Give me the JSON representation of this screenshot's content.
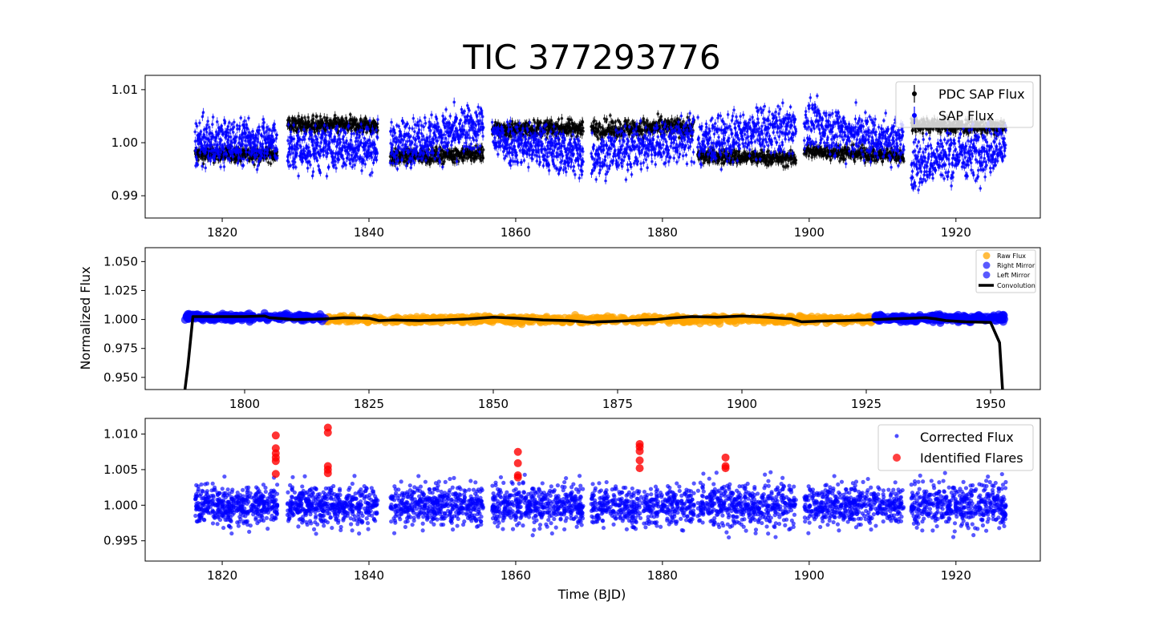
{
  "figure": {
    "title": "TIC 377293776"
  },
  "chart_data": [
    {
      "type": "scatter",
      "panel": "top",
      "xlabel": "",
      "ylabel": "",
      "xlim": [
        1809.5,
        1931.5
      ],
      "ylim": [
        0.9858,
        1.0127
      ],
      "xticks": [
        1820,
        1840,
        1860,
        1880,
        1900,
        1920
      ],
      "yticks": [
        0.99,
        1.0,
        1.01
      ],
      "ytick_labels": [
        "0.99",
        "1.00",
        "1.01"
      ],
      "legend_position": "top-right",
      "series": [
        {
          "name": "PDC SAP Flux",
          "color": "#000000",
          "marker": "errorbar-point",
          "segments": [
            {
              "x0": 1816.3,
              "x1": 1827.5,
              "level": [
                0.9978,
                0.9978
              ],
              "spread": 0.0016
            },
            {
              "x0": 1828.9,
              "x1": 1841.2,
              "level": [
                1.0034,
                1.0032
              ],
              "spread": 0.0018
            },
            {
              "x0": 1842.9,
              "x1": 1855.6,
              "level": [
                0.9973,
                0.998
              ],
              "spread": 0.0016
            },
            {
              "x0": 1856.8,
              "x1": 1869.2,
              "level": [
                1.0025,
                1.0028
              ],
              "spread": 0.0018
            },
            {
              "x0": 1870.3,
              "x1": 1884.3,
              "level": [
                1.0026,
                1.003
              ],
              "spread": 0.002
            },
            {
              "x0": 1884.8,
              "x1": 1898.2,
              "level": [
                0.9975,
                0.997
              ],
              "spread": 0.0016
            },
            {
              "x0": 1899.3,
              "x1": 1912.9,
              "level": [
                0.9985,
                0.9975
              ],
              "spread": 0.0016
            },
            {
              "x0": 1913.9,
              "x1": 1926.8,
              "level": [
                1.0035,
                1.0028
              ],
              "spread": 0.0016
            }
          ]
        },
        {
          "name": "SAP Flux",
          "color": "#0000ff",
          "marker": "errorbar-point",
          "segments": [
            {
              "x0": 1816.3,
              "x1": 1827.5,
              "level": [
                1.0,
                1.0003
              ],
              "spread": 0.005
            },
            {
              "x0": 1828.9,
              "x1": 1841.2,
              "level": [
                0.9985,
                0.9995
              ],
              "spread": 0.005
            },
            {
              "x0": 1842.9,
              "x1": 1855.6,
              "level": [
                0.9995,
                1.003
              ],
              "spread": 0.005
            },
            {
              "x0": 1856.8,
              "x1": 1869.2,
              "level": [
                1.001,
                0.9975
              ],
              "spread": 0.005
            },
            {
              "x0": 1870.3,
              "x1": 1884.3,
              "level": [
                0.9975,
                1.001
              ],
              "spread": 0.005
            },
            {
              "x0": 1884.8,
              "x1": 1898.2,
              "level": [
                1.0,
                1.003
              ],
              "spread": 0.0052
            },
            {
              "x0": 1899.3,
              "x1": 1912.9,
              "level": [
                1.0035,
                1.0
              ],
              "spread": 0.0052
            },
            {
              "x0": 1913.9,
              "x1": 1926.8,
              "level": [
                0.996,
                0.9995
              ],
              "spread": 0.0056
            }
          ]
        }
      ]
    },
    {
      "type": "scatter",
      "panel": "middle",
      "xlabel": "",
      "ylabel": "Normalized Flux",
      "xlim": [
        1780.0,
        1960.0
      ],
      "ylim": [
        0.9395,
        1.062
      ],
      "xticks": [
        1800,
        1825,
        1850,
        1875,
        1900,
        1925,
        1950
      ],
      "yticks": [
        0.95,
        0.975,
        1.0,
        1.025,
        1.05
      ],
      "ytick_labels": [
        "0.950",
        "0.975",
        "1.000",
        "1.025",
        "1.050"
      ],
      "legend_position": "top-right",
      "series": [
        {
          "name": "Raw Flux",
          "color": "#ffa500",
          "x_range": [
            1816.3,
            1926.8
          ],
          "level": 1.0,
          "spread": 0.0028
        },
        {
          "name": "Right Mirror",
          "color": "#0000ff",
          "x_range": [
            1926.8,
            1952.8
          ],
          "level": 1.001,
          "spread": 0.003
        },
        {
          "name": "Left Mirror",
          "color": "#0000ff",
          "x_range": [
            1788.0,
            1816.3
          ],
          "level": 1.002,
          "spread": 0.003
        },
        {
          "name": "Convolution",
          "color": "#000000",
          "line": {
            "x": [
              1788.0,
              1788.6,
              1789.6,
              1800,
              1804,
              1805,
              1810,
              1816,
              1820,
              1825,
              1827,
              1830,
              1835,
              1840,
              1845,
              1850,
              1855,
              1860,
              1865,
              1870,
              1871,
              1875,
              1880,
              1883,
              1885,
              1890,
              1895,
              1900,
              1905,
              1910,
              1912,
              1915,
              1920,
              1925,
              1930,
              1937,
              1939,
              1941,
              1945,
              1950,
              1951.8,
              1952.4
            ],
            "y": [
              0.9395,
              0.96,
              1.0025,
              1.0025,
              1.003,
              1.0015,
              1.0,
              1.0005,
              1.0015,
              1.001,
              0.999,
              0.9995,
              0.999,
              0.9995,
              1.0005,
              1.002,
              1.001,
              0.9995,
              0.999,
              0.9975,
              0.998,
              0.9985,
              0.9995,
              1.0,
              1.001,
              1.0025,
              1.002,
              1.003,
              1.002,
              1.0005,
              0.998,
              0.9985,
              0.999,
              0.9995,
              1.0005,
              1.0015,
              1.0005,
              0.999,
              0.998,
              0.9975,
              0.98,
              0.9395
            ]
          }
        }
      ]
    },
    {
      "type": "scatter",
      "panel": "bottom",
      "xlabel": "Time (BJD)",
      "ylabel": "",
      "xlim": [
        1809.5,
        1931.5
      ],
      "ylim": [
        0.99215,
        1.0122
      ],
      "xticks": [
        1820,
        1840,
        1860,
        1880,
        1900,
        1920
      ],
      "yticks": [
        0.995,
        1.0,
        1.005,
        1.01
      ],
      "ytick_labels": [
        "0.995",
        "1.000",
        "1.005",
        "1.010"
      ],
      "legend_position": "top-right",
      "series": [
        {
          "name": "Corrected Flux",
          "color": "#0000ff",
          "segments": [
            {
              "x0": 1816.3,
              "x1": 1827.5,
              "level": 1.0,
              "spread": 0.0032
            },
            {
              "x0": 1828.9,
              "x1": 1841.2,
              "level": 1.0,
              "spread": 0.0032
            },
            {
              "x0": 1842.9,
              "x1": 1855.6,
              "level": 1.0,
              "spread": 0.0032
            },
            {
              "x0": 1856.8,
              "x1": 1869.2,
              "level": 1.0,
              "spread": 0.0034
            },
            {
              "x0": 1870.3,
              "x1": 1884.3,
              "level": 1.0,
              "spread": 0.0034
            },
            {
              "x0": 1884.8,
              "x1": 1898.2,
              "level": 1.0,
              "spread": 0.0036
            },
            {
              "x0": 1899.3,
              "x1": 1912.9,
              "level": 1.0,
              "spread": 0.0032
            },
            {
              "x0": 1913.9,
              "x1": 1926.8,
              "level": 1.0,
              "spread": 0.0036
            }
          ]
        },
        {
          "name": "Identified Flares",
          "color": "#ff0000",
          "points": [
            {
              "x": 1827.3,
              "y": 1.0098
            },
            {
              "x": 1827.3,
              "y": 1.008
            },
            {
              "x": 1827.3,
              "y": 1.0073
            },
            {
              "x": 1827.3,
              "y": 1.0067
            },
            {
              "x": 1827.3,
              "y": 1.0062
            },
            {
              "x": 1827.3,
              "y": 1.0044
            },
            {
              "x": 1834.4,
              "y": 1.0109
            },
            {
              "x": 1834.4,
              "y": 1.0102
            },
            {
              "x": 1834.4,
              "y": 1.0055
            },
            {
              "x": 1834.4,
              "y": 1.005
            },
            {
              "x": 1834.4,
              "y": 1.0045
            },
            {
              "x": 1860.3,
              "y": 1.0075
            },
            {
              "x": 1860.3,
              "y": 1.0059
            },
            {
              "x": 1860.3,
              "y": 1.0042
            },
            {
              "x": 1860.3,
              "y": 1.0039
            },
            {
              "x": 1876.9,
              "y": 1.0086
            },
            {
              "x": 1876.9,
              "y": 1.0082
            },
            {
              "x": 1876.9,
              "y": 1.0076
            },
            {
              "x": 1876.9,
              "y": 1.0063
            },
            {
              "x": 1876.9,
              "y": 1.0052
            },
            {
              "x": 1888.6,
              "y": 1.0067
            },
            {
              "x": 1888.6,
              "y": 1.0055
            },
            {
              "x": 1888.6,
              "y": 1.0052
            }
          ]
        }
      ]
    }
  ]
}
